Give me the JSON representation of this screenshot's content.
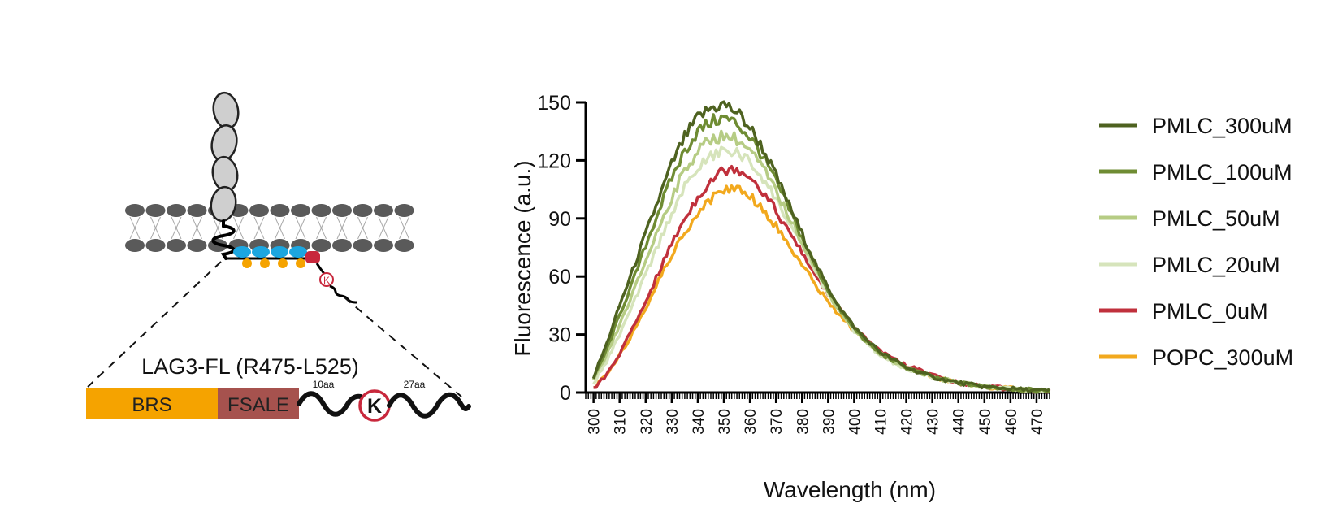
{
  "diagram": {
    "construct_title": "LAG3-FL (R475-L525)",
    "domains": {
      "brs": "BRS",
      "fsale": "FSALE"
    },
    "linker_labels": {
      "first": "10aa",
      "second": "27aa"
    },
    "lysine_letter": "K",
    "colors": {
      "brs": "#f5a300",
      "fsale": "#a6524e",
      "lysine_ring": "#c8283c",
      "blue_beads": "#1ca6e0",
      "orange_beads": "#f5a300",
      "lipid": "#5a5a5a",
      "ig_domain": "#cfcfcf"
    }
  },
  "chart_data": {
    "type": "line",
    "title": "",
    "xlabel": "Wavelength (nm)",
    "ylabel": "Fluorescence (a.u.)",
    "xlim": [
      297,
      475
    ],
    "ylim": [
      0,
      150
    ],
    "x_ticks": [
      300,
      310,
      320,
      330,
      340,
      350,
      360,
      370,
      380,
      390,
      400,
      410,
      420,
      430,
      440,
      450,
      460,
      470
    ],
    "y_ticks": [
      0,
      30,
      60,
      90,
      120,
      150
    ],
    "grid": false,
    "legend_position": "right",
    "x": [
      300,
      305,
      310,
      315,
      320,
      325,
      330,
      335,
      340,
      345,
      350,
      355,
      360,
      365,
      370,
      375,
      380,
      385,
      390,
      395,
      400,
      405,
      410,
      420,
      430,
      440,
      450,
      460,
      470,
      475
    ],
    "series": [
      {
        "name": "PMLC_300uM",
        "color": "#4e6220",
        "values": [
          8,
          25,
          45,
          63,
          82,
          100,
          118,
          132,
          142,
          147,
          149,
          145,
          137,
          126,
          112,
          97,
          82,
          67,
          54,
          43,
          34,
          27,
          21,
          13,
          8,
          5,
          3,
          2,
          1,
          1
        ]
      },
      {
        "name": "PMLC_100uM",
        "color": "#6f8c33",
        "values": [
          7,
          22,
          40,
          57,
          76,
          94,
          111,
          125,
          135,
          140,
          142,
          139,
          132,
          122,
          109,
          95,
          80,
          66,
          53,
          42,
          33,
          26,
          20,
          13,
          8,
          5,
          3,
          2,
          1,
          1
        ]
      },
      {
        "name": "PMLC_50uM",
        "color": "#b6cc84",
        "values": [
          6,
          19,
          35,
          51,
          68,
          85,
          101,
          115,
          125,
          131,
          133,
          131,
          125,
          116,
          104,
          91,
          78,
          65,
          52,
          41,
          33,
          26,
          20,
          13,
          8,
          5,
          3,
          2,
          1,
          1
        ]
      },
      {
        "name": "PMLC_20uM",
        "color": "#d6e4bb",
        "values": [
          5,
          16,
          30,
          45,
          61,
          77,
          93,
          106,
          116,
          122,
          125,
          124,
          119,
          111,
          100,
          88,
          76,
          63,
          51,
          41,
          32,
          25,
          19,
          12,
          8,
          5,
          3,
          2,
          1,
          1
        ]
      },
      {
        "name": "PMLC_0uM",
        "color": "#c0303c",
        "values": [
          2,
          9,
          20,
          33,
          47,
          62,
          77,
          90,
          101,
          110,
          115,
          116,
          112,
          104,
          94,
          83,
          72,
          61,
          51,
          42,
          34,
          27,
          21,
          14,
          9,
          5,
          3,
          2,
          1,
          1
        ]
      },
      {
        "name": "POPC_300uM",
        "color": "#f2a91e",
        "values": [
          2,
          9,
          19,
          31,
          44,
          58,
          71,
          83,
          93,
          100,
          105,
          106,
          102,
          95,
          86,
          76,
          66,
          56,
          47,
          39,
          32,
          26,
          20,
          13,
          8,
          5,
          3,
          2,
          1,
          1
        ]
      }
    ]
  }
}
